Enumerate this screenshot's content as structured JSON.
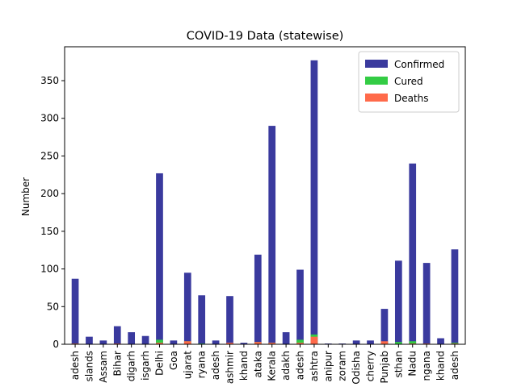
{
  "chart_data": {
    "type": "bar",
    "stacked": true,
    "title": "COVID-19 Data (statewise)",
    "xlabel": "",
    "ylabel": "Number",
    "ylim": [
      0,
      395
    ],
    "yticks": [
      0,
      50,
      100,
      150,
      200,
      250,
      300,
      350
    ],
    "grid": false,
    "legend_position": "top-right",
    "categories": [
      "adesh",
      "slands",
      "Assam",
      "Bihar",
      "digarh",
      "isgarh",
      "Delhi",
      "Goa",
      "ujarat",
      "ryana",
      "adesh",
      "ashmir",
      "khand",
      "ataka",
      "Kerala",
      "adakh",
      "adesh",
      "ashtra",
      "anipur",
      "zoram",
      "Odisha",
      "cherry",
      "Punjab",
      "sthan",
      "Nadu",
      "ngana",
      "khand",
      "adesh"
    ],
    "series": [
      {
        "name": "Confirmed",
        "color": "#3a3a9e",
        "values": [
          87,
          10,
          5,
          24,
          16,
          11,
          227,
          5,
          95,
          65,
          5,
          64,
          2,
          119,
          290,
          16,
          99,
          377,
          1,
          1,
          5,
          5,
          47,
          111,
          240,
          108,
          8,
          126
        ]
      },
      {
        "name": "Cured",
        "color": "#33cc44",
        "values": [
          1,
          0,
          0,
          0,
          0,
          0,
          6,
          0,
          4,
          1,
          0,
          1,
          0,
          3,
          2,
          0,
          6,
          13,
          0,
          0,
          0,
          0,
          2,
          3,
          4,
          1,
          0,
          2
        ]
      },
      {
        "name": "Deaths",
        "color": "#ff6a4a",
        "values": [
          1,
          0,
          0,
          1,
          0,
          0,
          2,
          0,
          4,
          0,
          0,
          2,
          0,
          3,
          2,
          0,
          2,
          10,
          0,
          0,
          0,
          0,
          4,
          0,
          1,
          1,
          0,
          1
        ]
      }
    ]
  }
}
